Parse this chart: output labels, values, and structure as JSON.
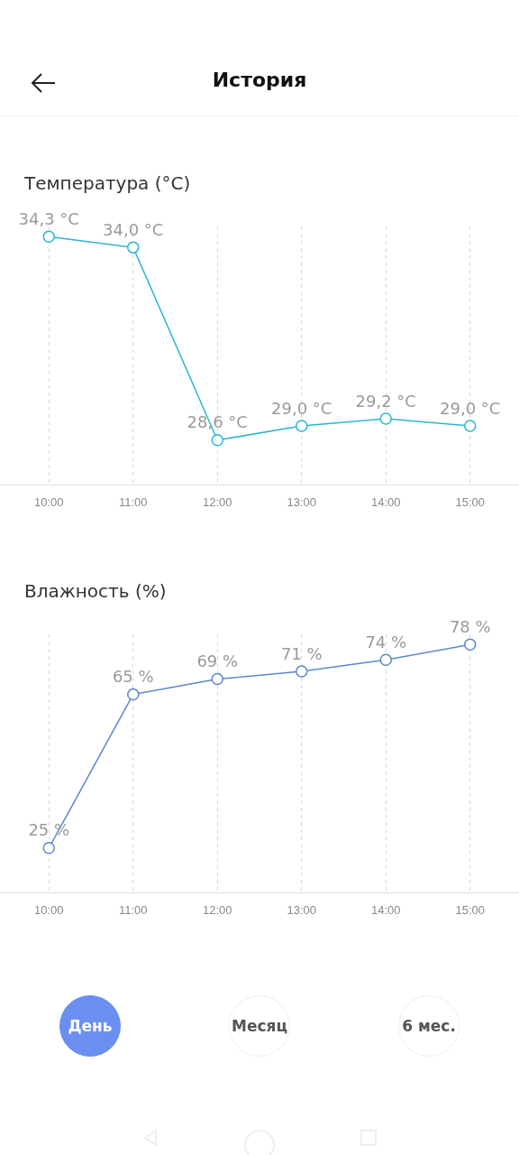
{
  "chart_data": [
    {
      "type": "other",
      "title": "История"
    },
    {
      "type": "line",
      "title": "Температура (°C)",
      "categories": [
        "10:00",
        "11:00",
        "12:00",
        "13:00",
        "14:00",
        "15:00"
      ],
      "color": "#2bb5d3",
      "values": [
        34.3,
        34.0,
        28.6,
        29.0,
        29.2,
        29.0
      ],
      "value_labels": [
        "34,3 °C",
        "34,0 °C",
        "28,6 °C",
        "29,0 °C",
        "29,2 °C",
        "29,0 °C"
      ],
      "grid": "x",
      "marker": "circle"
    },
    {
      "type": "line",
      "title": "Влажность (%)",
      "categories": [
        "10:00",
        "11:00",
        "12:00",
        "13:00",
        "14:00",
        "15:00"
      ],
      "color": "#5b88c9",
      "values": [
        25,
        65,
        69,
        71,
        74,
        78
      ],
      "value_labels": [
        "25 %",
        "65 %",
        "69 %",
        "71 %",
        "74 %",
        "78 %"
      ],
      "grid": "x",
      "marker": "circle"
    },
    {
      "type": "other",
      "annotations": [
        "День",
        "Месяц",
        "6 мес."
      ]
    }
  ]
}
